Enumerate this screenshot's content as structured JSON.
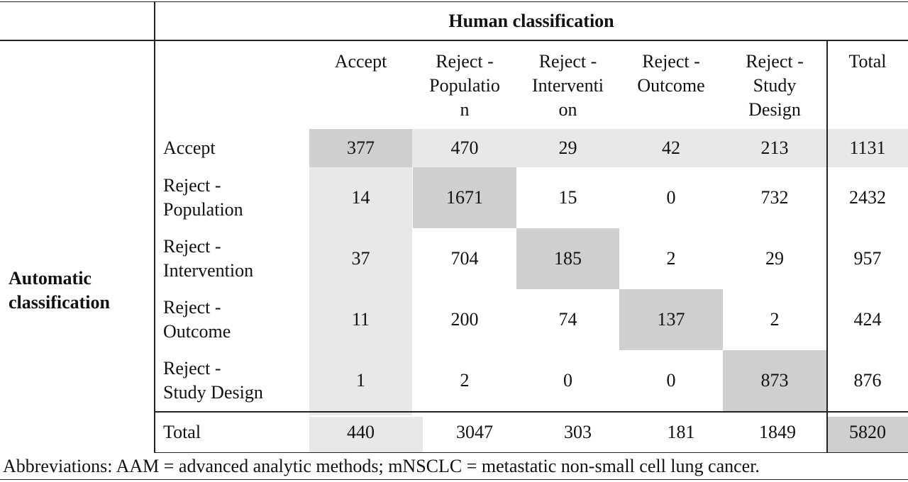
{
  "table": {
    "human_header": "Human classification",
    "automatic_header": "Automatic classification",
    "column_headers": [
      "Accept",
      "Reject -\nPopulatio\nn",
      "Reject -\nInterventi\non",
      "Reject -\nOutcome",
      "Reject -\nStudy\nDesign",
      "Total"
    ],
    "row_labels": [
      "Accept",
      "Reject -\nPopulation",
      "Reject -\nIntervention",
      "Reject -\nOutcome",
      "Reject -\nStudy Design"
    ],
    "rows": [
      [
        "377",
        "470",
        "29",
        "42",
        "213",
        "1131"
      ],
      [
        "14",
        "1671",
        "15",
        "0",
        "732",
        "2432"
      ],
      [
        "37",
        "704",
        "185",
        "2",
        "29",
        "957"
      ],
      [
        "11",
        "200",
        "74",
        "137",
        "2",
        "424"
      ],
      [
        "1",
        "2",
        "0",
        "0",
        "873",
        "876"
      ]
    ],
    "total_label": "Total",
    "totals": [
      "440",
      "3047",
      "303",
      "181",
      "1849",
      "5820"
    ]
  },
  "footnote": "Abbreviations: AAM = advanced analytic methods; mNSCLC = metastatic non-small cell lung cancer."
}
